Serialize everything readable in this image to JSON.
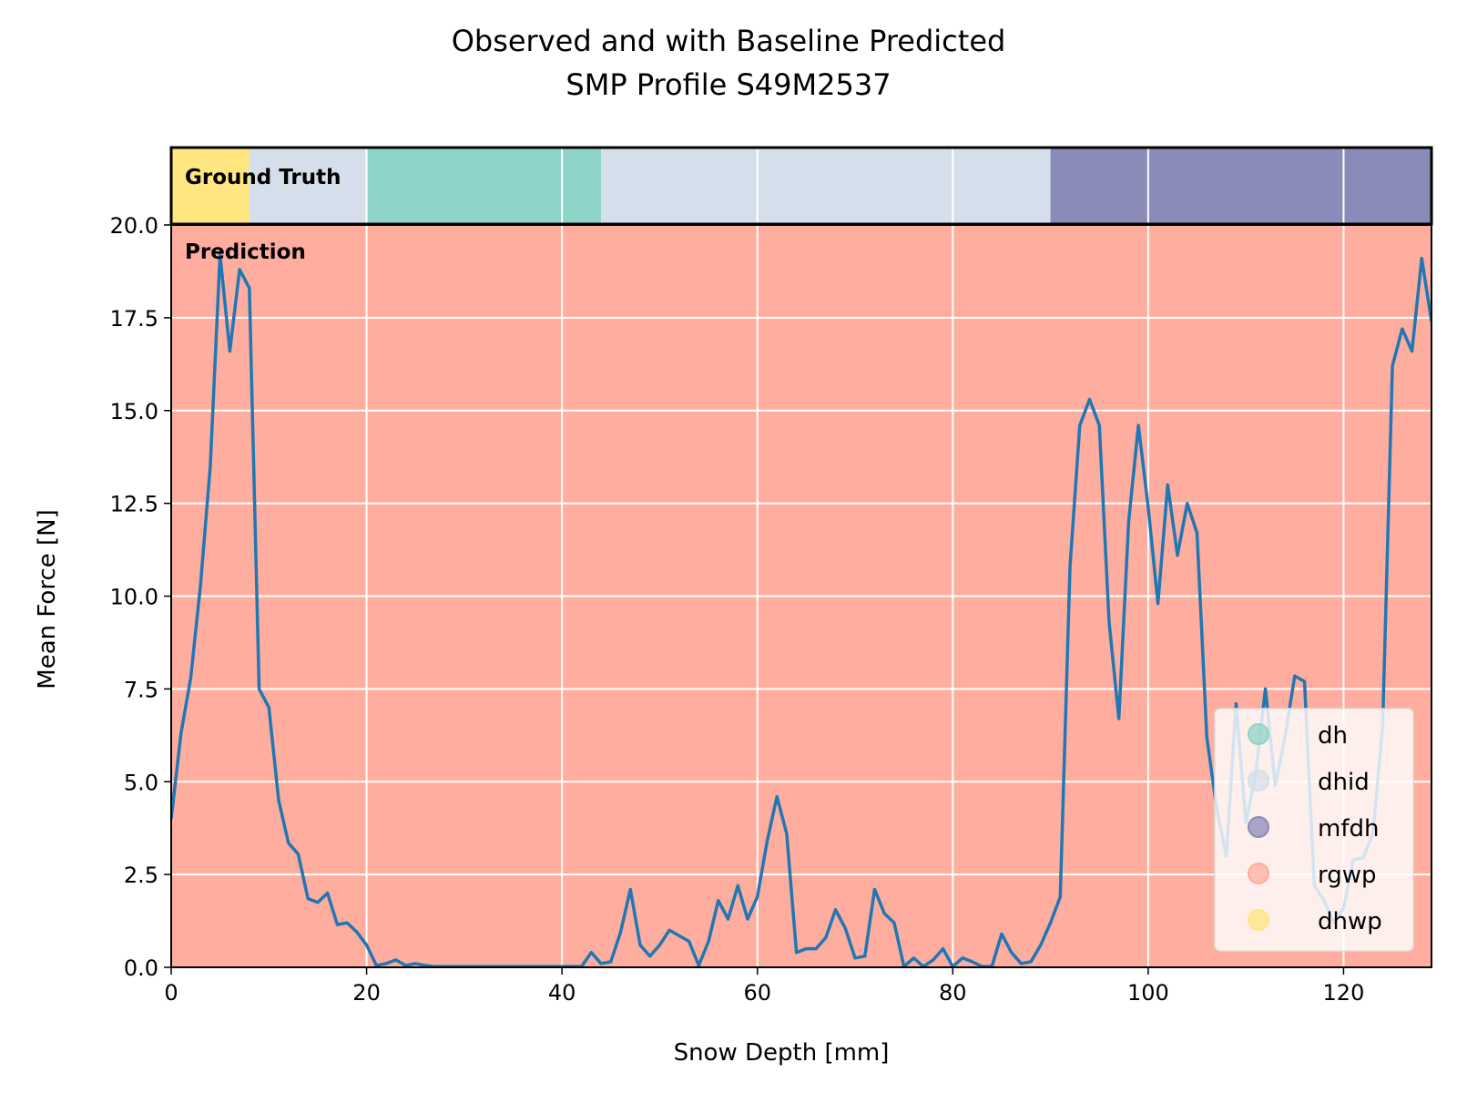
{
  "chart_data": {
    "type": "line",
    "title_line1": "Observed and with Baseline Predicted",
    "title_line2": "SMP Profile S49M2537",
    "xlabel": "Snow Depth [mm]",
    "ylabel": "Mean Force [N]",
    "xlim": [
      0,
      129
    ],
    "ylim": [
      0,
      20
    ],
    "xticks": [
      0,
      20,
      40,
      60,
      80,
      100,
      120
    ],
    "yticks": [
      "0.0",
      "2.5",
      "5.0",
      "7.5",
      "10.0",
      "12.5",
      "15.0",
      "17.5",
      "20.0"
    ],
    "grid": true,
    "line_color": "#1f77b4",
    "ground_truth_label": "Ground Truth",
    "prediction_label": "Prediction",
    "classes": [
      {
        "name": "dh",
        "color": "#8dd3c7"
      },
      {
        "name": "dhid",
        "color": "#d5dfec"
      },
      {
        "name": "mfdh",
        "color": "#8b8bb9"
      },
      {
        "name": "rgwp",
        "color": "#ffad9f"
      },
      {
        "name": "dhwp",
        "color": "#ffe680"
      }
    ],
    "legend_position": "lower right",
    "ground_truth_segments": [
      {
        "class": "dhwp",
        "start": 0,
        "end": 8
      },
      {
        "class": "dhid",
        "start": 8,
        "end": 20
      },
      {
        "class": "dh",
        "start": 20,
        "end": 44
      },
      {
        "class": "dhid",
        "start": 44,
        "end": 90
      },
      {
        "class": "mfdh",
        "start": 90,
        "end": 129
      }
    ],
    "prediction_segments": [
      {
        "class": "rgwp",
        "start": 0,
        "end": 129
      }
    ],
    "series": [
      {
        "x": [
          0,
          1,
          2,
          3,
          4,
          5,
          6,
          7,
          8,
          9,
          10,
          11,
          12,
          13,
          14,
          15,
          16,
          17,
          18,
          19,
          20,
          21,
          22,
          23,
          24,
          25,
          26,
          27,
          28,
          29,
          30,
          31,
          32,
          33,
          34,
          35,
          36,
          37,
          38,
          39,
          40,
          41,
          42,
          43,
          44,
          45,
          46,
          47,
          48,
          49,
          50,
          51,
          52,
          53,
          54,
          55,
          56,
          57,
          58,
          59,
          60,
          61,
          62,
          63,
          64,
          65,
          66,
          67,
          68,
          69,
          70,
          71,
          72,
          73,
          74,
          75,
          76,
          77,
          78,
          79,
          80,
          81,
          82,
          83,
          84,
          85,
          86,
          87,
          88,
          89,
          90,
          91,
          92,
          93,
          94,
          95,
          96,
          97,
          98,
          99,
          100,
          101,
          102,
          103,
          104,
          105,
          106,
          107,
          108,
          109,
          110,
          111,
          112,
          113,
          114,
          115,
          116,
          117,
          118,
          119,
          120,
          121,
          122,
          123,
          124,
          125,
          126,
          127,
          128,
          129
        ],
        "y": [
          4.0,
          6.3,
          7.8,
          10.3,
          13.5,
          19.2,
          16.6,
          18.8,
          18.3,
          7.5,
          7.0,
          4.5,
          3.35,
          3.05,
          1.85,
          1.75,
          2.0,
          1.15,
          1.2,
          0.95,
          0.6,
          0.05,
          0.1,
          0.2,
          0.05,
          0.1,
          0.05,
          0.02,
          0.02,
          0.02,
          0.02,
          0.02,
          0.02,
          0.02,
          0.02,
          0.02,
          0.02,
          0.02,
          0.02,
          0.02,
          0.02,
          0.02,
          0.02,
          0.4,
          0.1,
          0.15,
          0.95,
          2.1,
          0.6,
          0.3,
          0.6,
          1.0,
          0.85,
          0.7,
          0.05,
          0.7,
          1.8,
          1.3,
          2.2,
          1.3,
          1.9,
          3.4,
          4.6,
          3.6,
          0.4,
          0.5,
          0.5,
          0.8,
          1.55,
          1.05,
          0.25,
          0.3,
          2.1,
          1.45,
          1.2,
          0.02,
          0.25,
          0.02,
          0.2,
          0.5,
          0.02,
          0.25,
          0.15,
          0.02,
          0.02,
          0.9,
          0.4,
          0.1,
          0.15,
          0.6,
          1.2,
          1.9,
          10.8,
          14.6,
          15.3,
          14.6,
          9.3,
          6.7,
          12.0,
          14.6,
          12.4,
          9.8,
          13.0,
          11.1,
          12.5,
          11.7,
          6.2,
          4.3,
          3.0,
          7.1,
          3.9,
          5.2,
          7.5,
          4.9,
          6.2,
          7.85,
          7.7,
          2.2,
          1.8,
          1.2,
          1.6,
          2.9,
          2.95,
          3.6,
          6.5,
          16.2,
          17.2,
          16.6,
          19.1,
          17.4
        ]
      }
    ]
  }
}
